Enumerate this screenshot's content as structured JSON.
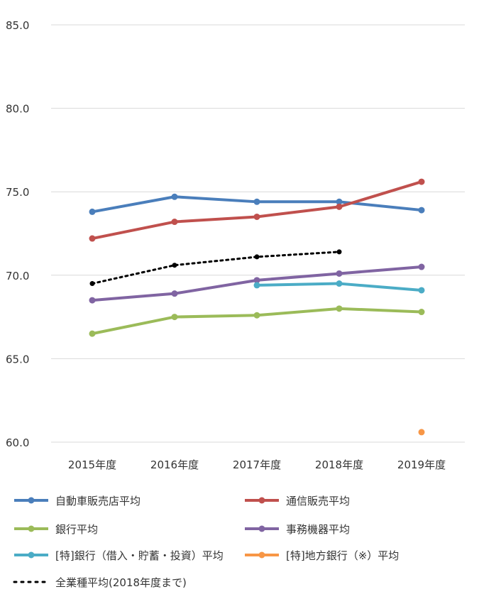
{
  "chart_data": {
    "type": "line",
    "title": "",
    "xlabel": "",
    "ylabel": "",
    "categories": [
      "2015年度",
      "2016年度",
      "2017年度",
      "2018年度",
      "2019年度"
    ],
    "ylim": [
      60.0,
      85.0
    ],
    "yticks": [
      "85.0",
      "80.0",
      "75.0",
      "70.0",
      "65.0",
      "60.0"
    ],
    "ytick_values": [
      85,
      80,
      75,
      70,
      65,
      60
    ],
    "grid": true,
    "legend_position": "bottom",
    "series": [
      {
        "name": "自動車販売店平均",
        "color": "#4a7ebb",
        "style": "solid",
        "values": [
          73.8,
          74.7,
          74.4,
          74.4,
          73.9
        ]
      },
      {
        "name": "通信販売平均",
        "color": "#c0504d",
        "style": "solid",
        "values": [
          72.2,
          73.2,
          73.5,
          74.1,
          75.6
        ]
      },
      {
        "name": "銀行平均",
        "color": "#9bbb59",
        "style": "solid",
        "values": [
          66.5,
          67.5,
          67.6,
          68.0,
          67.8
        ]
      },
      {
        "name": "事務機器平均",
        "color": "#8064a2",
        "style": "solid",
        "values": [
          68.5,
          68.9,
          69.7,
          70.1,
          70.5
        ]
      },
      {
        "name": "[特]銀行（借入・貯蓄・投資）平均",
        "color": "#4bacc6",
        "style": "solid",
        "values": [
          null,
          null,
          69.4,
          69.5,
          69.1
        ]
      },
      {
        "name": "[特]地方銀行（※）平均",
        "color": "#f79646",
        "style": "solid",
        "values": [
          null,
          null,
          null,
          null,
          60.6
        ]
      },
      {
        "name": "全業種平均(2018年度まで)",
        "color": "#000000",
        "style": "dotted",
        "values": [
          69.5,
          70.6,
          71.1,
          71.4,
          null
        ]
      }
    ]
  }
}
